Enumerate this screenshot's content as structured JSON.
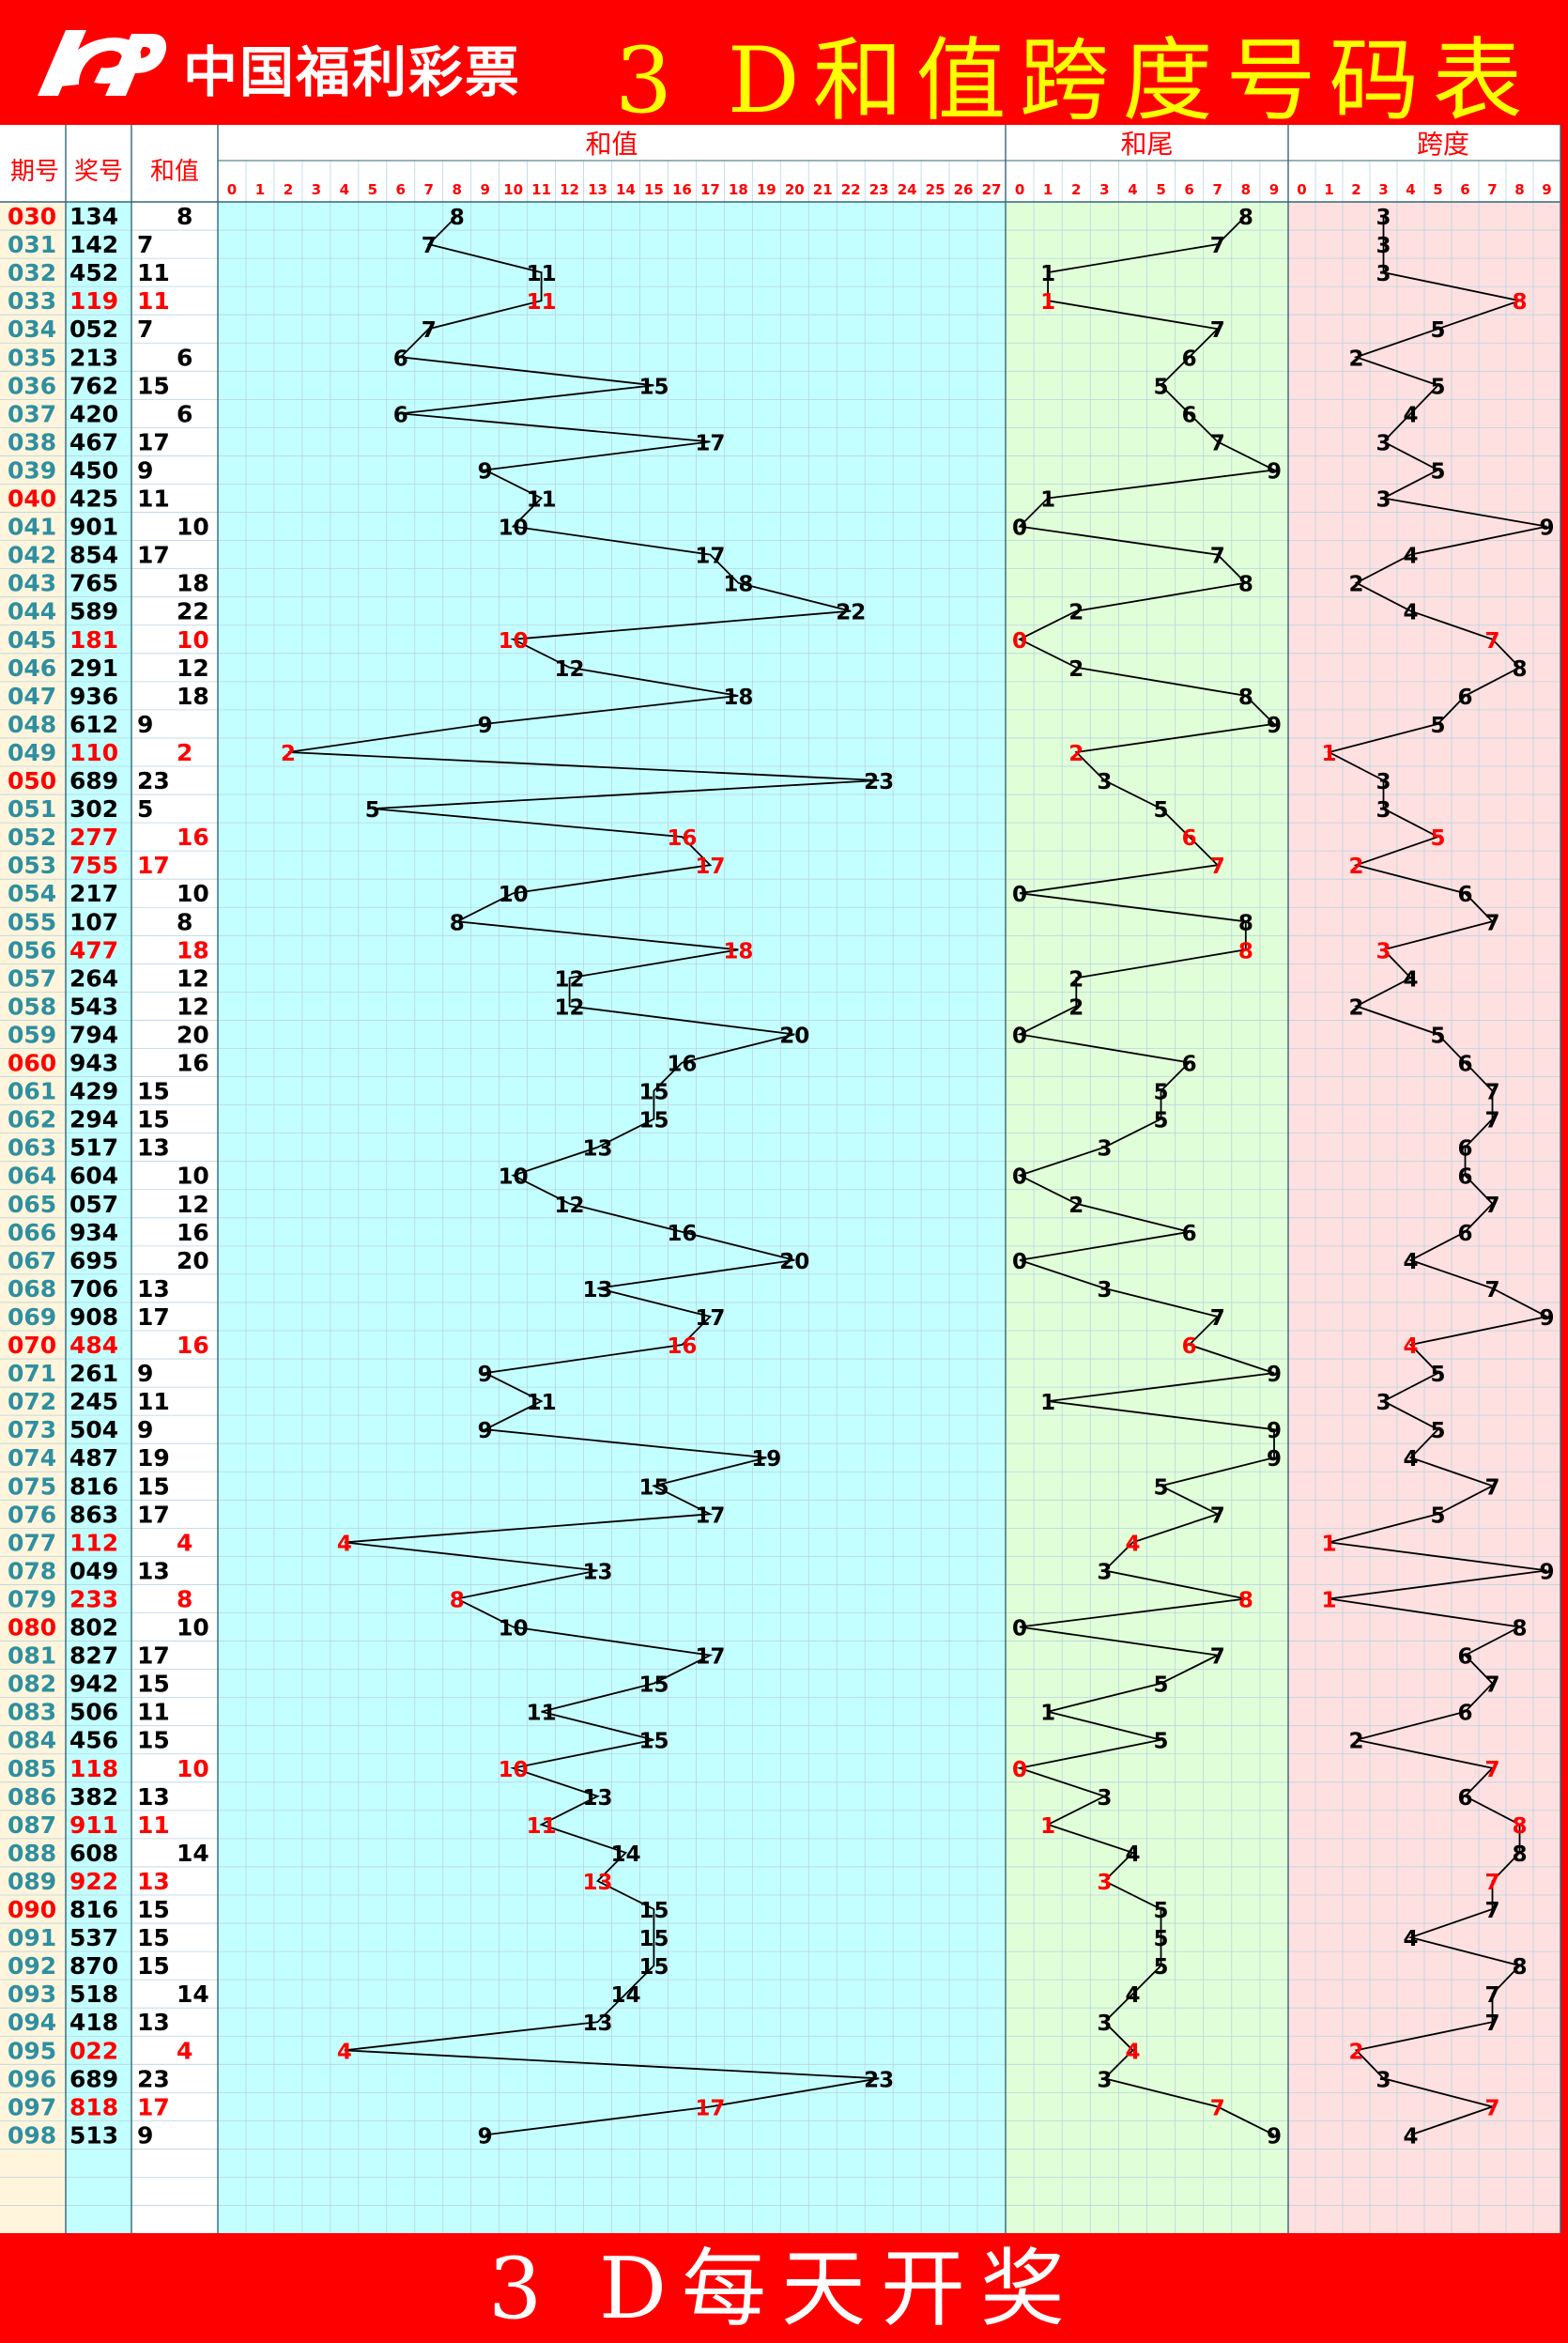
{
  "header": {
    "logo_text": "中国福利彩票",
    "title": "3 D和值跨度号码表"
  },
  "footer": {
    "title": "3 D每天开奖"
  },
  "columns": {
    "period": "期号",
    "draw": "奖号",
    "sum": "和值",
    "sum_section": "和值",
    "tail_section": "和尾",
    "span_section": "跨度"
  },
  "colors": {
    "highlight": "#ff0000",
    "normal": "#000000",
    "period": "#2f8fa0",
    "sum_bg": "#c4ffff",
    "tail_bg": "#e0ffd8",
    "span_bg": "#ffe0e0",
    "period_bg": "#fff5dc"
  },
  "chart_data": {
    "type": "line",
    "rows": [
      {
        "period": "030",
        "draw": "134",
        "sum": 8,
        "tail": 8,
        "span": 3,
        "red": false,
        "period_red": true
      },
      {
        "period": "031",
        "draw": "142",
        "sum": 7,
        "tail": 7,
        "span": 3,
        "red": false,
        "period_red": false
      },
      {
        "period": "032",
        "draw": "452",
        "sum": 11,
        "tail": 1,
        "span": 3,
        "red": false,
        "period_red": false
      },
      {
        "period": "033",
        "draw": "119",
        "sum": 11,
        "tail": 1,
        "span": 8,
        "red": true,
        "period_red": false
      },
      {
        "period": "034",
        "draw": "052",
        "sum": 7,
        "tail": 7,
        "span": 5,
        "red": false,
        "period_red": false
      },
      {
        "period": "035",
        "draw": "213",
        "sum": 6,
        "tail": 6,
        "span": 2,
        "red": false,
        "period_red": false
      },
      {
        "period": "036",
        "draw": "762",
        "sum": 15,
        "tail": 5,
        "span": 5,
        "red": false,
        "period_red": false
      },
      {
        "period": "037",
        "draw": "420",
        "sum": 6,
        "tail": 6,
        "span": 4,
        "red": false,
        "period_red": false
      },
      {
        "period": "038",
        "draw": "467",
        "sum": 17,
        "tail": 7,
        "span": 3,
        "red": false,
        "period_red": false
      },
      {
        "period": "039",
        "draw": "450",
        "sum": 9,
        "tail": 9,
        "span": 5,
        "red": false,
        "period_red": false
      },
      {
        "period": "040",
        "draw": "425",
        "sum": 11,
        "tail": 1,
        "span": 3,
        "red": false,
        "period_red": true
      },
      {
        "period": "041",
        "draw": "901",
        "sum": 10,
        "tail": 0,
        "span": 9,
        "red": false,
        "period_red": false
      },
      {
        "period": "042",
        "draw": "854",
        "sum": 17,
        "tail": 7,
        "span": 4,
        "red": false,
        "period_red": false
      },
      {
        "period": "043",
        "draw": "765",
        "sum": 18,
        "tail": 8,
        "span": 2,
        "red": false,
        "period_red": false
      },
      {
        "period": "044",
        "draw": "589",
        "sum": 22,
        "tail": 2,
        "span": 4,
        "red": false,
        "period_red": false
      },
      {
        "period": "045",
        "draw": "181",
        "sum": 10,
        "tail": 0,
        "span": 7,
        "red": true,
        "period_red": false
      },
      {
        "period": "046",
        "draw": "291",
        "sum": 12,
        "tail": 2,
        "span": 8,
        "red": false,
        "period_red": false
      },
      {
        "period": "047",
        "draw": "936",
        "sum": 18,
        "tail": 8,
        "span": 6,
        "red": false,
        "period_red": false
      },
      {
        "period": "048",
        "draw": "612",
        "sum": 9,
        "tail": 9,
        "span": 5,
        "red": false,
        "period_red": false
      },
      {
        "period": "049",
        "draw": "110",
        "sum": 2,
        "tail": 2,
        "span": 1,
        "red": true,
        "period_red": false
      },
      {
        "period": "050",
        "draw": "689",
        "sum": 23,
        "tail": 3,
        "span": 3,
        "red": false,
        "period_red": true
      },
      {
        "period": "051",
        "draw": "302",
        "sum": 5,
        "tail": 5,
        "span": 3,
        "red": false,
        "period_red": false
      },
      {
        "period": "052",
        "draw": "277",
        "sum": 16,
        "tail": 6,
        "span": 5,
        "red": true,
        "period_red": false
      },
      {
        "period": "053",
        "draw": "755",
        "sum": 17,
        "tail": 7,
        "span": 2,
        "red": true,
        "period_red": false
      },
      {
        "period": "054",
        "draw": "217",
        "sum": 10,
        "tail": 0,
        "span": 6,
        "red": false,
        "period_red": false
      },
      {
        "period": "055",
        "draw": "107",
        "sum": 8,
        "tail": 8,
        "span": 7,
        "red": false,
        "period_red": false
      },
      {
        "period": "056",
        "draw": "477",
        "sum": 18,
        "tail": 8,
        "span": 3,
        "red": true,
        "period_red": false
      },
      {
        "period": "057",
        "draw": "264",
        "sum": 12,
        "tail": 2,
        "span": 4,
        "red": false,
        "period_red": false
      },
      {
        "period": "058",
        "draw": "543",
        "sum": 12,
        "tail": 2,
        "span": 2,
        "red": false,
        "period_red": false
      },
      {
        "period": "059",
        "draw": "794",
        "sum": 20,
        "tail": 0,
        "span": 5,
        "red": false,
        "period_red": false
      },
      {
        "period": "060",
        "draw": "943",
        "sum": 16,
        "tail": 6,
        "span": 6,
        "red": false,
        "period_red": true
      },
      {
        "period": "061",
        "draw": "429",
        "sum": 15,
        "tail": 5,
        "span": 7,
        "red": false,
        "period_red": false
      },
      {
        "period": "062",
        "draw": "294",
        "sum": 15,
        "tail": 5,
        "span": 7,
        "red": false,
        "period_red": false
      },
      {
        "period": "063",
        "draw": "517",
        "sum": 13,
        "tail": 3,
        "span": 6,
        "red": false,
        "period_red": false
      },
      {
        "period": "064",
        "draw": "604",
        "sum": 10,
        "tail": 0,
        "span": 6,
        "red": false,
        "period_red": false
      },
      {
        "period": "065",
        "draw": "057",
        "sum": 12,
        "tail": 2,
        "span": 7,
        "red": false,
        "period_red": false
      },
      {
        "period": "066",
        "draw": "934",
        "sum": 16,
        "tail": 6,
        "span": 6,
        "red": false,
        "period_red": false
      },
      {
        "period": "067",
        "draw": "695",
        "sum": 20,
        "tail": 0,
        "span": 4,
        "red": false,
        "period_red": false
      },
      {
        "period": "068",
        "draw": "706",
        "sum": 13,
        "tail": 3,
        "span": 7,
        "red": false,
        "period_red": false
      },
      {
        "period": "069",
        "draw": "908",
        "sum": 17,
        "tail": 7,
        "span": 9,
        "red": false,
        "period_red": false
      },
      {
        "period": "070",
        "draw": "484",
        "sum": 16,
        "tail": 6,
        "span": 4,
        "red": true,
        "period_red": true
      },
      {
        "period": "071",
        "draw": "261",
        "sum": 9,
        "tail": 9,
        "span": 5,
        "red": false,
        "period_red": false
      },
      {
        "period": "072",
        "draw": "245",
        "sum": 11,
        "tail": 1,
        "span": 3,
        "red": false,
        "period_red": false
      },
      {
        "period": "073",
        "draw": "504",
        "sum": 9,
        "tail": 9,
        "span": 5,
        "red": false,
        "period_red": false
      },
      {
        "period": "074",
        "draw": "487",
        "sum": 19,
        "tail": 9,
        "span": 4,
        "red": false,
        "period_red": false
      },
      {
        "period": "075",
        "draw": "816",
        "sum": 15,
        "tail": 5,
        "span": 7,
        "red": false,
        "period_red": false
      },
      {
        "period": "076",
        "draw": "863",
        "sum": 17,
        "tail": 7,
        "span": 5,
        "red": false,
        "period_red": false
      },
      {
        "period": "077",
        "draw": "112",
        "sum": 4,
        "tail": 4,
        "span": 1,
        "red": true,
        "period_red": false
      },
      {
        "period": "078",
        "draw": "049",
        "sum": 13,
        "tail": 3,
        "span": 9,
        "red": false,
        "period_red": false
      },
      {
        "period": "079",
        "draw": "233",
        "sum": 8,
        "tail": 8,
        "span": 1,
        "red": true,
        "period_red": false
      },
      {
        "period": "080",
        "draw": "802",
        "sum": 10,
        "tail": 0,
        "span": 8,
        "red": false,
        "period_red": true
      },
      {
        "period": "081",
        "draw": "827",
        "sum": 17,
        "tail": 7,
        "span": 6,
        "red": false,
        "period_red": false
      },
      {
        "period": "082",
        "draw": "942",
        "sum": 15,
        "tail": 5,
        "span": 7,
        "red": false,
        "period_red": false
      },
      {
        "period": "083",
        "draw": "506",
        "sum": 11,
        "tail": 1,
        "span": 6,
        "red": false,
        "period_red": false
      },
      {
        "period": "084",
        "draw": "456",
        "sum": 15,
        "tail": 5,
        "span": 2,
        "red": false,
        "period_red": false
      },
      {
        "period": "085",
        "draw": "118",
        "sum": 10,
        "tail": 0,
        "span": 7,
        "red": true,
        "period_red": false
      },
      {
        "period": "086",
        "draw": "382",
        "sum": 13,
        "tail": 3,
        "span": 6,
        "red": false,
        "period_red": false
      },
      {
        "period": "087",
        "draw": "911",
        "sum": 11,
        "tail": 1,
        "span": 8,
        "red": true,
        "period_red": false
      },
      {
        "period": "088",
        "draw": "608",
        "sum": 14,
        "tail": 4,
        "span": 8,
        "red": false,
        "period_red": false
      },
      {
        "period": "089",
        "draw": "922",
        "sum": 13,
        "tail": 3,
        "span": 7,
        "red": true,
        "period_red": false
      },
      {
        "period": "090",
        "draw": "816",
        "sum": 15,
        "tail": 5,
        "span": 7,
        "red": false,
        "period_red": true
      },
      {
        "period": "091",
        "draw": "537",
        "sum": 15,
        "tail": 5,
        "span": 4,
        "red": false,
        "period_red": false
      },
      {
        "period": "092",
        "draw": "870",
        "sum": 15,
        "tail": 5,
        "span": 8,
        "red": false,
        "period_red": false
      },
      {
        "period": "093",
        "draw": "518",
        "sum": 14,
        "tail": 4,
        "span": 7,
        "red": false,
        "period_red": false
      },
      {
        "period": "094",
        "draw": "418",
        "sum": 13,
        "tail": 3,
        "span": 7,
        "red": false,
        "period_red": false
      },
      {
        "period": "095",
        "draw": "022",
        "sum": 4,
        "tail": 4,
        "span": 2,
        "red": true,
        "period_red": false
      },
      {
        "period": "096",
        "draw": "689",
        "sum": 23,
        "tail": 3,
        "span": 3,
        "red": false,
        "period_red": false
      },
      {
        "period": "097",
        "draw": "818",
        "sum": 17,
        "tail": 7,
        "span": 7,
        "red": true,
        "period_red": false
      },
      {
        "period": "098",
        "draw": "513",
        "sum": 9,
        "tail": 9,
        "span": 4,
        "red": false,
        "period_red": false
      }
    ],
    "sum_range": [
      0,
      27
    ],
    "tail_range": [
      0,
      9
    ],
    "span_range": [
      0,
      9
    ],
    "empty_rows": 3
  }
}
